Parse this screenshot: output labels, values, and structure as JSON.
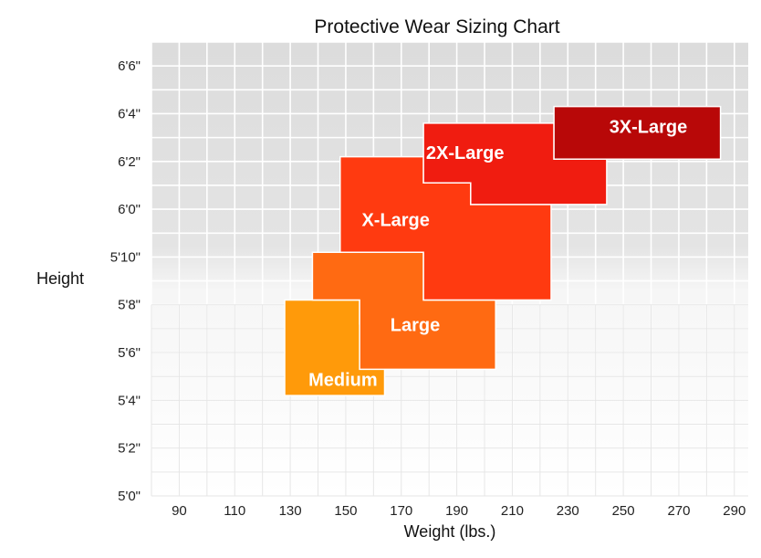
{
  "chart_data": {
    "type": "area",
    "title": "Protective Wear Sizing Chart",
    "xlabel": "Weight (lbs.)",
    "ylabel": "Height",
    "xlim": [
      80,
      295
    ],
    "ylim": [
      60,
      79
    ],
    "x_ticks": [
      {
        "value": 90,
        "label": "90"
      },
      {
        "value": 110,
        "label": "110"
      },
      {
        "value": 130,
        "label": "130"
      },
      {
        "value": 150,
        "label": "150"
      },
      {
        "value": 170,
        "label": "170"
      },
      {
        "value": 190,
        "label": "190"
      },
      {
        "value": 210,
        "label": "210"
      },
      {
        "value": 230,
        "label": "230"
      },
      {
        "value": 250,
        "label": "250"
      },
      {
        "value": 270,
        "label": "270"
      },
      {
        "value": 290,
        "label": "290"
      }
    ],
    "y_ticks": [
      {
        "value": 60,
        "label": "5'0\""
      },
      {
        "value": 62,
        "label": "5'2\""
      },
      {
        "value": 64,
        "label": "5'4\""
      },
      {
        "value": 66,
        "label": "5'6\""
      },
      {
        "value": 68,
        "label": "5'8\""
      },
      {
        "value": 70,
        "label": "5'10\""
      },
      {
        "value": 72,
        "label": "6'0\""
      },
      {
        "value": 74,
        "label": "6'2\""
      },
      {
        "value": 76,
        "label": "6'4\""
      },
      {
        "value": 78,
        "label": "6'6\""
      }
    ],
    "grid": true,
    "sizes": [
      {
        "name": "Medium",
        "color": "#ff9a0a",
        "label_at": [
          149,
          64.6
        ],
        "polygon": [
          [
            128,
            64.2
          ],
          [
            164,
            64.2
          ],
          [
            164,
            67.2
          ],
          [
            155,
            67.2
          ],
          [
            155,
            68.2
          ],
          [
            128,
            68.2
          ]
        ]
      },
      {
        "name": "Large",
        "color": "#ff6a12",
        "label_at": [
          175,
          66.9
        ],
        "polygon": [
          [
            155,
            65.3
          ],
          [
            204,
            65.3
          ],
          [
            204,
            68.2
          ],
          [
            178,
            68.2
          ],
          [
            178,
            70.2
          ],
          [
            138,
            70.2
          ],
          [
            138,
            68.2
          ],
          [
            155,
            68.2
          ],
          [
            155,
            67.2
          ]
        ]
      },
      {
        "name": "X-Large",
        "color": "#ff3a10",
        "label_at": [
          168,
          71.3
        ],
        "polygon": [
          [
            178,
            68.2
          ],
          [
            224,
            68.2
          ],
          [
            224,
            72.2
          ],
          [
            195,
            72.2
          ],
          [
            195,
            73.1
          ],
          [
            178,
            73.1
          ],
          [
            178,
            74.2
          ],
          [
            148,
            74.2
          ],
          [
            148,
            70.2
          ],
          [
            178,
            70.2
          ]
        ]
      },
      {
        "name": "2X-Large",
        "color": "#f01c10",
        "label_at": [
          193,
          74.1
        ],
        "polygon": [
          [
            195,
            72.2
          ],
          [
            244,
            72.2
          ],
          [
            244,
            74.1
          ],
          [
            225,
            74.1
          ],
          [
            225,
            75.6
          ],
          [
            178,
            75.6
          ],
          [
            178,
            73.1
          ],
          [
            195,
            73.1
          ]
        ]
      },
      {
        "name": "3X-Large",
        "color": "#b80808",
        "label_at": [
          259,
          75.2
        ],
        "polygon": [
          [
            225,
            74.1
          ],
          [
            285,
            74.1
          ],
          [
            285,
            76.3
          ],
          [
            225,
            76.3
          ]
        ]
      }
    ]
  }
}
